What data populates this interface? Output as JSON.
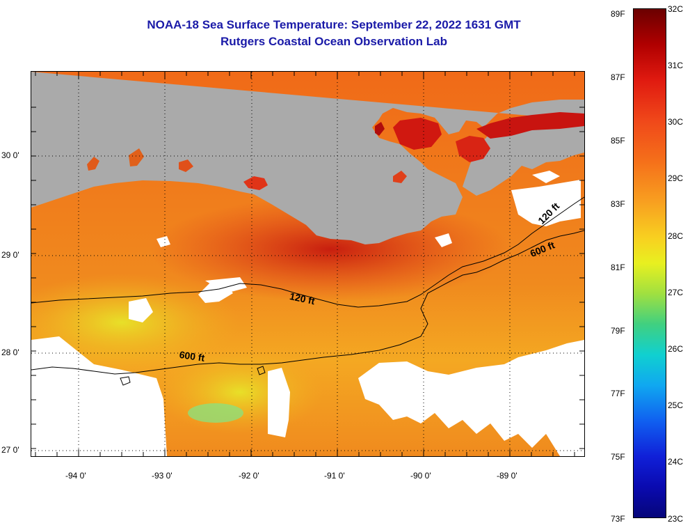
{
  "header": {
    "title": "NOAA-18 Sea Surface Temperature:  September 22, 2022 1631 GMT",
    "subtitle": "Rutgers Coastal Ocean Observation Lab"
  },
  "map": {
    "lat_labels": [
      "30 0'",
      "29 0'",
      "28 0'",
      "27 0'"
    ],
    "lon_labels": [
      "-94 0'",
      "-93 0'",
      "-92 0'",
      "-91 0'",
      "-90 0'",
      "-89 0'"
    ],
    "contour_labels": [
      "120 ft",
      "120 ft",
      "600 ft",
      "600 ft"
    ],
    "colors": {
      "land": "#aaaaaa",
      "cloud": "#ffffff",
      "nearshore_warm": "#c0100c",
      "shelf": "#f07a1a",
      "offshore_cool": "#f5c020",
      "coolest_patch": "#7ee08a"
    }
  },
  "colorbar": {
    "fahrenheit": [
      "89F",
      "87F",
      "85F",
      "83F",
      "81F",
      "79F",
      "77F",
      "75F",
      "73F"
    ],
    "celsius": [
      "32C",
      "31C",
      "30C",
      "29C",
      "28C",
      "27C",
      "26C",
      "25C",
      "24C",
      "23C"
    ]
  }
}
